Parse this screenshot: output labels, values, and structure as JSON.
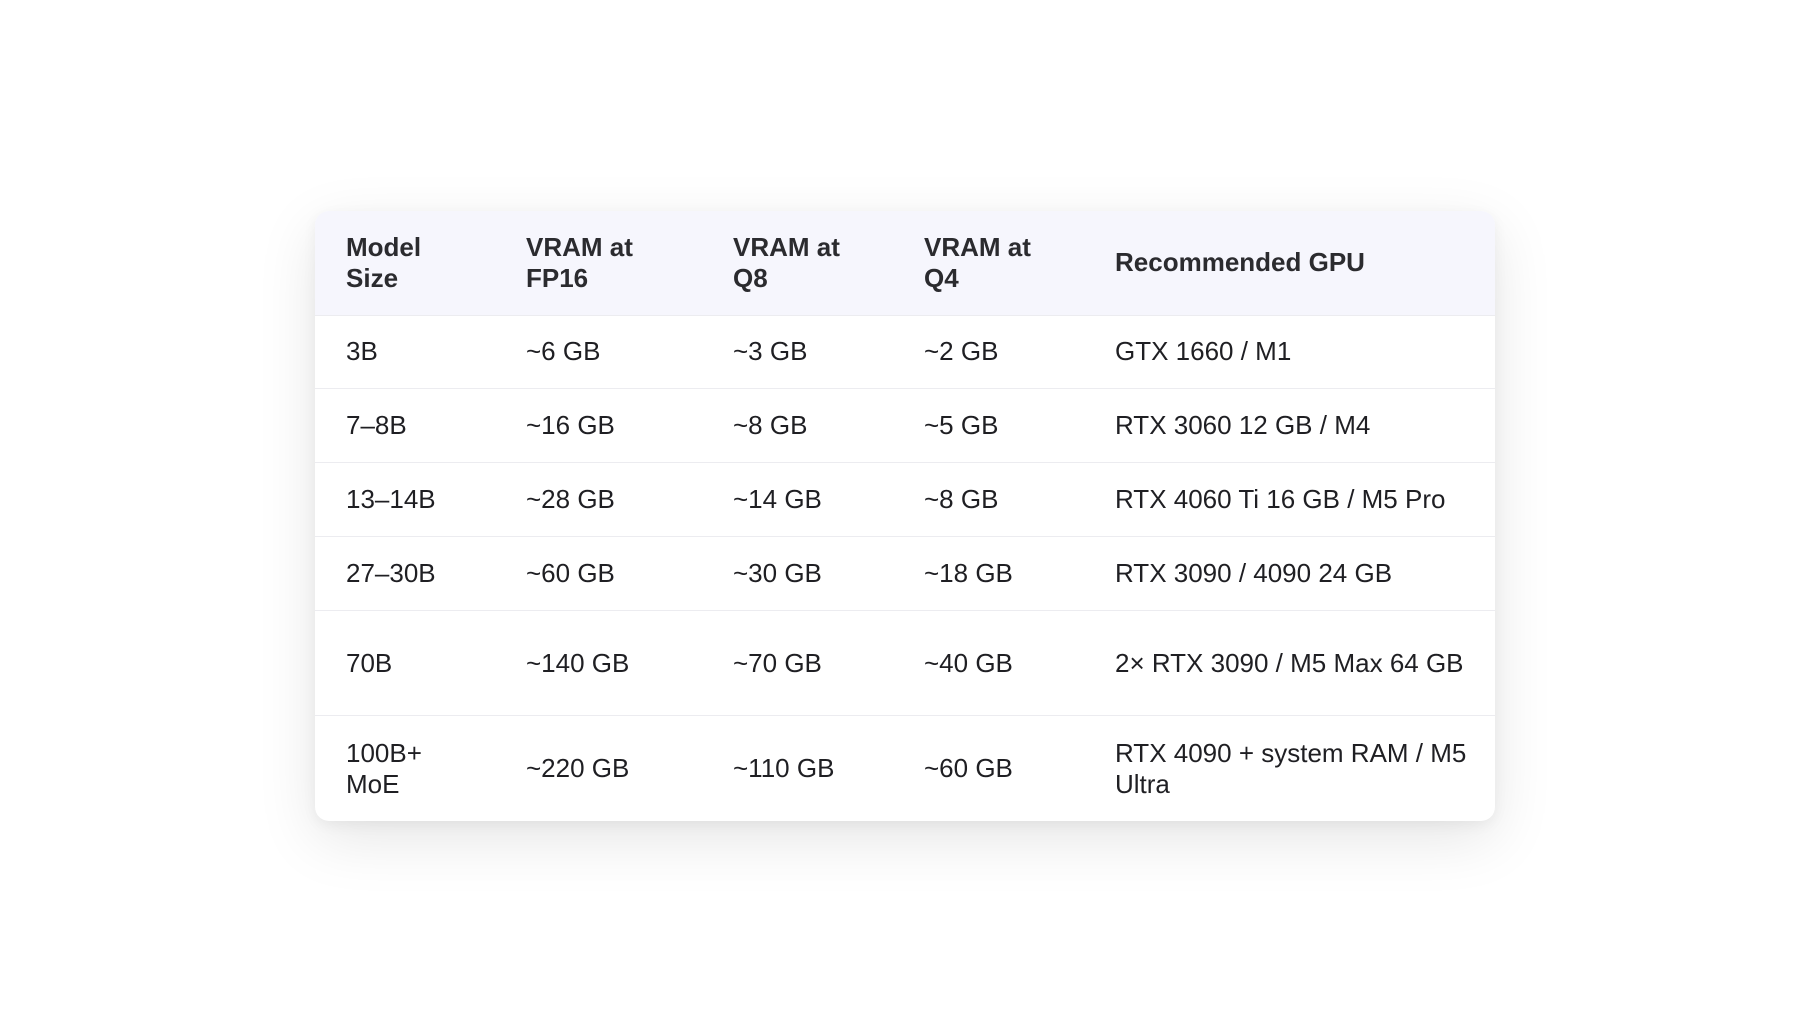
{
  "table": {
    "headers": [
      "Model Size",
      "VRAM at FP16",
      "VRAM at Q8",
      "VRAM at Q4",
      "Recommended GPU"
    ],
    "rows": [
      [
        "3B",
        "~6 GB",
        "~3 GB",
        "~2 GB",
        "GTX 1660 / M1"
      ],
      [
        "7–8B",
        "~16 GB",
        "~8 GB",
        "~5 GB",
        "RTX 3060 12 GB / M4"
      ],
      [
        "13–14B",
        "~28 GB",
        "~14 GB",
        "~8 GB",
        "RTX 4060 Ti 16 GB / M5 Pro"
      ],
      [
        "27–30B",
        "~60 GB",
        "~30 GB",
        "~18 GB",
        "RTX 3090 / 4090 24 GB"
      ],
      [
        "70B",
        "~140 GB",
        "~70 GB",
        "~40 GB",
        "2× RTX 3090 / M5 Max 64 GB"
      ],
      [
        "100B+ MoE",
        "~220 GB",
        "~110 GB",
        "~60 GB",
        "RTX 4090 + system RAM / M5 Ultra"
      ]
    ]
  },
  "colors": {
    "header_background": "#f6f6fd",
    "row_divider": "#ececf0",
    "text": "#1f1f23",
    "page_background": "#ffffff"
  }
}
